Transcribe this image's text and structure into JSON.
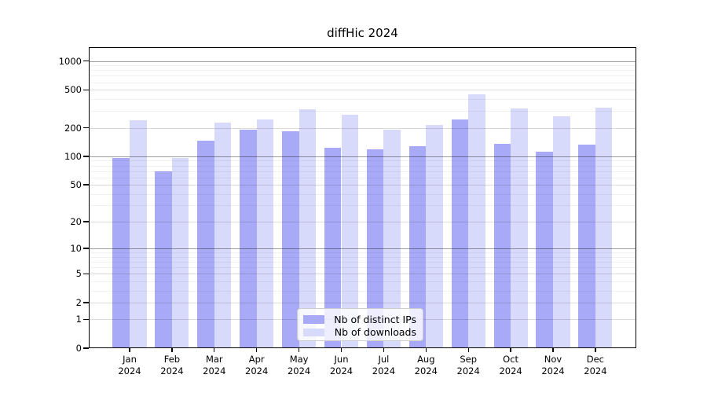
{
  "title": "diffHic 2024",
  "chart_data": {
    "type": "bar",
    "title": "diffHic 2024",
    "categories": [
      "Jan 2024",
      "Feb 2024",
      "Mar 2024",
      "Apr 2024",
      "May 2024",
      "Jun 2024",
      "Jul 2024",
      "Aug 2024",
      "Sep 2024",
      "Oct 2024",
      "Nov 2024",
      "Dec 2024"
    ],
    "series": [
      {
        "name": "Nb of distinct IPs",
        "color": "#a9aaf7",
        "values": [
          97,
          70,
          147,
          192,
          185,
          122,
          119,
          128,
          245,
          136,
          111,
          132
        ]
      },
      {
        "name": "Nb of downloads",
        "color": "#d8dafb",
        "values": [
          240,
          97,
          225,
          245,
          310,
          275,
          190,
          213,
          450,
          318,
          265,
          322
        ]
      }
    ],
    "xlabel": "",
    "ylabel": "",
    "yscale": "log10(value+1)",
    "yticks": [
      0,
      1,
      2,
      5,
      10,
      20,
      50,
      100,
      200,
      500,
      1000
    ],
    "minor_gridline_multipliers": [
      3,
      4,
      6,
      7,
      8,
      9
    ],
    "minor_gridline_decades": [
      1,
      10,
      100
    ],
    "ylim_log_units": 3.145,
    "grid": true,
    "legend_position": "bottom-center",
    "background_color": "#ffffff",
    "axis_color": "#000000"
  },
  "legend": {
    "item1": "Nb of distinct IPs",
    "item2": "Nb of downloads"
  }
}
